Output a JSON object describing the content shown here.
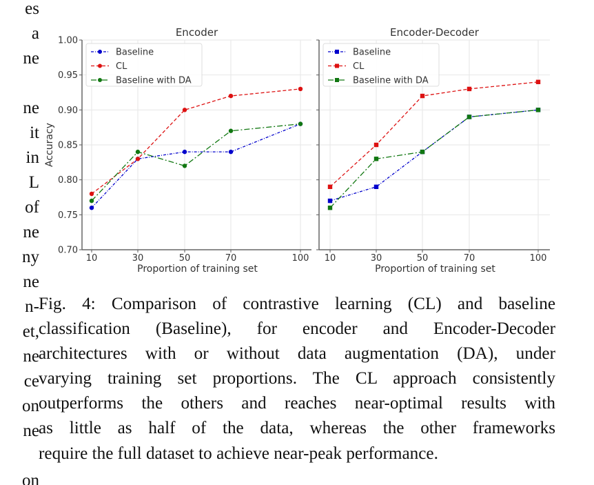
{
  "left_column_fragments": [
    "es",
    "a",
    "ne",
    "",
    "ne",
    "it",
    "in",
    "L",
    "of",
    "ne",
    "ny",
    "ne",
    "n-",
    "et,",
    "ne",
    "ce",
    "on",
    "ne",
    "",
    "on"
  ],
  "caption_lines": [
    "Fig. 4: Comparison of contrastive learning (CL) and baseline",
    "classification (Baseline), for encoder and Encoder-Decoder",
    "architectures with or without data augmentation (DA), under",
    "varying training set proportions. The CL approach consistently",
    "outperforms the others and reaches near-optimal results with",
    "as little as half of the data, whereas the other frameworks",
    "require the full dataset to achieve near-peak performance."
  ],
  "chart_data": [
    {
      "type": "line",
      "title": "Encoder",
      "xlabel": "Proportion of training set",
      "ylabel": "Accuracy",
      "x": [
        10,
        30,
        50,
        70,
        100
      ],
      "xticks": [
        "10",
        "30",
        "50",
        "70",
        "100"
      ],
      "ylim": [
        0.7,
        1.0
      ],
      "yticks": [
        "0.70",
        "0.75",
        "0.80",
        "0.85",
        "0.90",
        "0.95",
        "1.00"
      ],
      "grid": true,
      "legend": "top-left",
      "marker": "circle",
      "series": [
        {
          "name": "Baseline",
          "color": "#0000cc",
          "dash": "dashdot-dense",
          "values": [
            0.76,
            0.83,
            0.84,
            0.84,
            0.88
          ]
        },
        {
          "name": "CL",
          "color": "#dd1111",
          "dash": "dashed",
          "values": [
            0.78,
            0.83,
            0.9,
            0.92,
            0.93
          ]
        },
        {
          "name": "Baseline with DA",
          "color": "#117711",
          "dash": "dashdot",
          "values": [
            0.77,
            0.84,
            0.82,
            0.87,
            0.88
          ]
        }
      ]
    },
    {
      "type": "line",
      "title": "Encoder-Decoder",
      "xlabel": "Proportion of training set",
      "ylabel": "",
      "x": [
        10,
        30,
        50,
        70,
        100
      ],
      "xticks": [
        "10",
        "30",
        "50",
        "70",
        "100"
      ],
      "ylim": [
        0.7,
        1.0
      ],
      "yticks": [],
      "grid": true,
      "legend": "top-left",
      "marker": "square",
      "series": [
        {
          "name": "Baseline",
          "color": "#0000cc",
          "dash": "dashdot-dense",
          "values": [
            0.77,
            0.79,
            0.84,
            0.89,
            0.9
          ]
        },
        {
          "name": "CL",
          "color": "#dd1111",
          "dash": "dashed",
          "values": [
            0.79,
            0.85,
            0.92,
            0.93,
            0.94
          ]
        },
        {
          "name": "Baseline with DA",
          "color": "#117711",
          "dash": "dashdot",
          "values": [
            0.76,
            0.83,
            0.84,
            0.89,
            0.9
          ]
        }
      ]
    }
  ]
}
